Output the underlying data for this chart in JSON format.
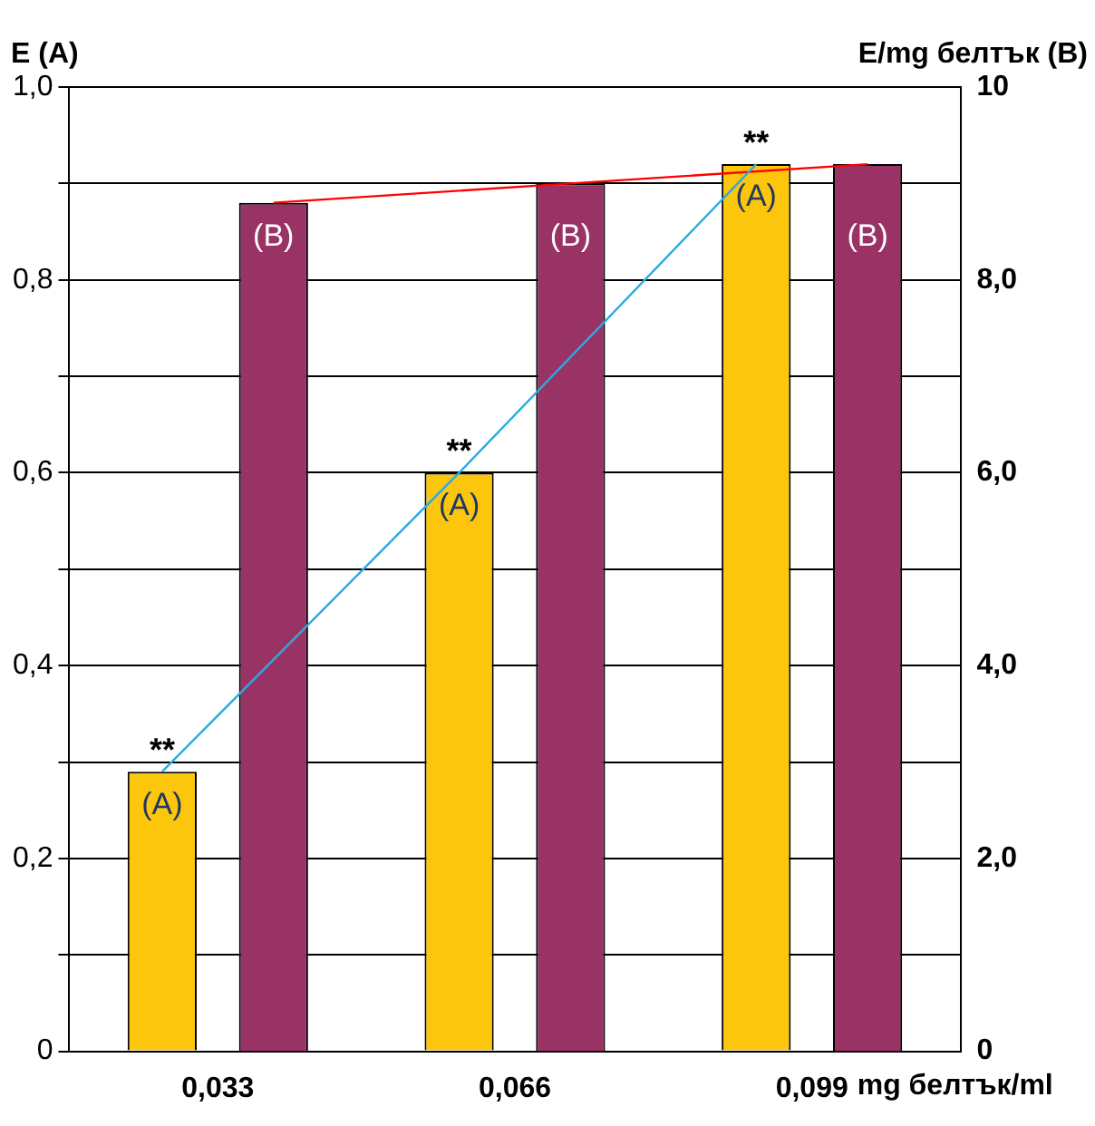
{
  "chart_data": {
    "type": "bar",
    "categories": [
      "0,033",
      "0,066",
      "0,099"
    ],
    "xlabel": "mg белтък/ml",
    "ylabel": "E (A)",
    "y2label": "E/mg белтък (B)",
    "series": [
      {
        "color": "#fcc60c",
        "values": [
          0.29,
          0.6,
          0.92
        ],
        "value_labels": [
          "(A)",
          "(A)",
          "(A)"
        ]
      },
      {
        "color": "#993366",
        "values": [
          8.8,
          9.0,
          9.2
        ],
        "axis": "y2",
        "value_labels": [
          "(B)",
          "(B)",
          "(B)"
        ]
      },
      {
        "type": "line",
        "color": "#29abe2",
        "values": [
          0.29,
          0.6,
          0.92
        ]
      },
      {
        "type": "line",
        "color": "#ff0000",
        "values": [
          8.8,
          9.0,
          9.2
        ],
        "axis": "y2"
      }
    ],
    "ylim": [
      0,
      1
    ],
    "yticks": [
      {
        "value": 0,
        "label": "0"
      },
      {
        "value": 0.1,
        "label": null
      },
      {
        "value": 0.2,
        "label": "0,2"
      },
      {
        "value": 0.3,
        "label": null
      },
      {
        "value": 0.4,
        "label": "0,4"
      },
      {
        "value": 0.5,
        "label": null
      },
      {
        "value": 0.6,
        "label": "0,6"
      },
      {
        "value": 0.7,
        "label": null
      },
      {
        "value": 0.8,
        "label": "0,8"
      },
      {
        "value": 0.9,
        "label": null
      },
      {
        "value": 1,
        "label": "1,0"
      }
    ],
    "y2lim": [
      0,
      10
    ],
    "y2ticks": [
      {
        "value": 0,
        "label": "0"
      },
      {
        "value": 2,
        "label": "2,0"
      },
      {
        "value": 4,
        "label": "4,0"
      },
      {
        "value": 6,
        "label": "6,0"
      },
      {
        "value": 8,
        "label": "8,0"
      },
      {
        "value": 10,
        "label": "10"
      }
    ],
    "grid": "y",
    "legend": false,
    "annotations": [
      "**",
      "**",
      "**"
    ]
  }
}
